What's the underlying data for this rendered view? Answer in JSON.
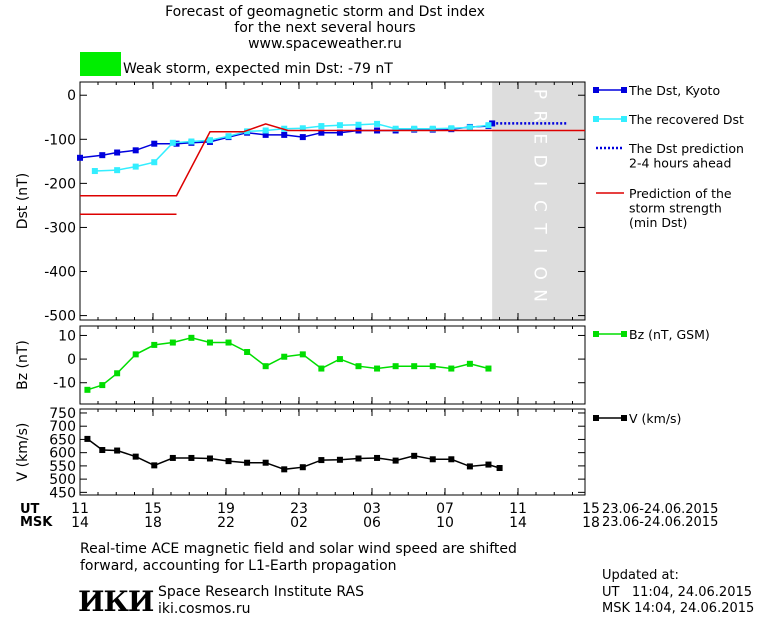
{
  "header": {
    "title_line1": "Forecast of geomagnetic storm and Dst index",
    "title_line2": "for the next several hours",
    "title_line3": "www.spaceweather.ru",
    "storm_text": "Weak storm, expected min Dst: -79 nT",
    "storm_color": "#00ee00"
  },
  "colors": {
    "dst": "#0000dd",
    "recovered": "#33eeff",
    "prediction_dotted": "#0000dd",
    "strength": "#dd0000",
    "bz": "#00dd00",
    "v": "#000000",
    "prediction_band": "#dddddd"
  },
  "chart_data": [
    {
      "type": "line",
      "ylabel": "Dst (nT)",
      "ylim": [
        -510,
        30
      ],
      "yticks": [
        0,
        -100,
        -200,
        -300,
        -400,
        -500
      ],
      "prediction_label": "PREDICTION",
      "prediction_band_x": [
        11.1,
        13.6
      ],
      "series": [
        {
          "name": "The Dst, Kyoto",
          "x": [
            0,
            0.6,
            1,
            1.5,
            2,
            2.6,
            3,
            3.5,
            4,
            4.5,
            5,
            5.5,
            6,
            6.5,
            7,
            7.5,
            8,
            8.5,
            9,
            9.5,
            10,
            10.5,
            11,
            11.1
          ],
          "y": [
            -142,
            -136,
            -130,
            -125,
            -110,
            -110,
            -108,
            -106,
            -95,
            -85,
            -90,
            -90,
            -95,
            -85,
            -85,
            -80,
            -80,
            -80,
            -78,
            -78,
            -77,
            -72,
            -70,
            -64
          ]
        },
        {
          "name": "The recovered Dst",
          "x": [
            0.4,
            1,
            1.5,
            2,
            2.5,
            3,
            3.5,
            4,
            4.5,
            5,
            5.5,
            6,
            6.5,
            7,
            7.5,
            8,
            8.5,
            9,
            9.5,
            10,
            10.5,
            11
          ],
          "y": [
            -172,
            -170,
            -162,
            -152,
            -108,
            -105,
            -102,
            -93,
            -82,
            -80,
            -76,
            -75,
            -70,
            -68,
            -67,
            -65,
            -76,
            -76,
            -76,
            -75,
            -73,
            -68
          ]
        },
        {
          "name": "The Dst prediction\n2-4 hours ahead",
          "x": [
            11.1,
            13.1
          ],
          "y": [
            -64,
            -64
          ]
        },
        {
          "name": "Prediction of the\nstorm strength\n(min Dst)",
          "x": [
            0,
            2.6,
            3.5,
            4.4,
            5,
            5.6,
            6,
            6.5,
            7,
            7.5,
            8,
            8.5,
            9,
            9.5,
            10,
            10.5,
            11,
            11.1,
            13.6
          ],
          "y": [
            -228,
            -228,
            -83,
            -83,
            -65,
            -80,
            -80,
            -80,
            -80,
            -80,
            -80,
            -80,
            -80,
            -80,
            -80,
            -80,
            -80,
            -80,
            -80
          ]
        },
        {
          "name": "",
          "x": [
            0,
            2.6
          ],
          "y": [
            -270,
            -270
          ]
        }
      ]
    },
    {
      "type": "line",
      "ylabel": "Bz (nT)",
      "ylim": [
        -19,
        14
      ],
      "yticks": [
        10,
        0,
        -10
      ],
      "series": [
        {
          "name": "Bz (nT, GSM)",
          "x": [
            0.2,
            0.6,
            1,
            1.5,
            2,
            2.5,
            3,
            3.5,
            4,
            4.5,
            5,
            5.5,
            6,
            6.5,
            7,
            7.5,
            8,
            8.5,
            9,
            9.5,
            10,
            10.5,
            11
          ],
          "y": [
            -13,
            -11,
            -6,
            2,
            6,
            7,
            9,
            7,
            7,
            3,
            -3,
            1,
            2,
            -4,
            0,
            -3,
            -4,
            -3,
            -3,
            -3,
            -4,
            -2,
            -4
          ]
        }
      ]
    },
    {
      "type": "line",
      "ylabel": "V (km/s)",
      "ylim": [
        440,
        765
      ],
      "yticks": [
        750,
        700,
        650,
        600,
        550,
        500,
        450
      ],
      "series": [
        {
          "name": "V (km/s)",
          "x": [
            0.2,
            0.6,
            1,
            1.5,
            2,
            2.5,
            3,
            3.5,
            4,
            4.5,
            5,
            5.5,
            6,
            6.5,
            7,
            7.5,
            8,
            8.5,
            9,
            9.5,
            10,
            10.5,
            11,
            11.3
          ],
          "y": [
            652,
            610,
            608,
            585,
            552,
            580,
            580,
            578,
            568,
            562,
            562,
            537,
            545,
            572,
            573,
            578,
            580,
            570,
            588,
            575,
            575,
            548,
            555,
            542
          ]
        }
      ]
    }
  ],
  "x_axis": {
    "ut_label": "UT",
    "msk_label": "MSK",
    "ut_ticks": [
      "11",
      "15",
      "19",
      "23",
      "03",
      "07",
      "11",
      "15"
    ],
    "msk_ticks": [
      "14",
      "18",
      "22",
      "02",
      "06",
      "10",
      "14",
      "18"
    ],
    "date_range_ut": "23.06-24.06.2015",
    "date_range_msk": "23.06-24.06.2015"
  },
  "footer": {
    "note_line1": "Real-time ACE magnetic field and solar wind speed are shifted",
    "note_line2": "forward, accounting for L1-Earth propagation",
    "logo_text": "ИКИ",
    "institute": "Space Research Institute RAS",
    "url": "iki.cosmos.ru",
    "updated_label": "Updated at:",
    "updated_ut": "UT   11:04, 24.06.2015",
    "updated_msk": "MSK 14:04, 24.06.2015"
  }
}
